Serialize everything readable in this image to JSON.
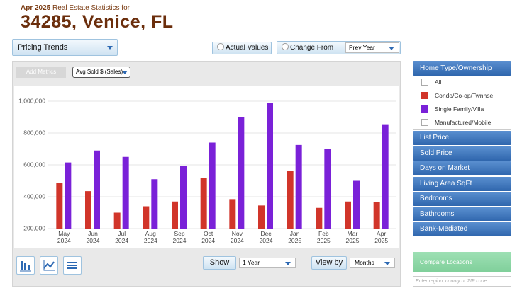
{
  "header": {
    "date": "Apr 2025",
    "subtitle": "Real Estate Statistics for",
    "title": "34285, Venice, FL"
  },
  "controls": {
    "trend": "Pricing Trends",
    "actual_values": "Actual Values",
    "change_from": "Change From",
    "compare_period": "Prev Year",
    "add_metrics": "Add Metrics",
    "metric": "Avg Sold $ (Sales)",
    "show": "Show",
    "period": "1 Year",
    "view_by": "View by",
    "interval": "Months"
  },
  "sidebar": {
    "home_type": "Home Type/Ownership",
    "all": "All",
    "manufactured": "Manufactured/Mobile",
    "sections": [
      "List Price",
      "Sold Price",
      "Days on Market",
      "Living Area SqFt",
      "Bedrooms",
      "Bathrooms",
      "Bank-Mediated"
    ],
    "compare": "Compare Locations",
    "search_placeholder": "Enter region, county or ZIP code"
  },
  "chart_data": {
    "type": "bar",
    "categories": [
      "May 2024",
      "Jun 2024",
      "Jul 2024",
      "Aug 2024",
      "Sep 2024",
      "Oct 2024",
      "Nov 2024",
      "Dec 2024",
      "Jan 2025",
      "Feb 2025",
      "Mar 2025",
      "Apr 2025"
    ],
    "series": [
      {
        "name": "Condo/Co-op/Twnhse",
        "color": "#d1352a",
        "values": [
          485000,
          435000,
          300000,
          340000,
          370000,
          520000,
          385000,
          345000,
          560000,
          330000,
          370000,
          365000
        ]
      },
      {
        "name": "Single Family/Villa",
        "color": "#7a21d8",
        "values": [
          615000,
          690000,
          650000,
          510000,
          595000,
          740000,
          900000,
          990000,
          725000,
          700000,
          500000,
          855000
        ]
      }
    ],
    "ylim": [
      200000,
      1000000
    ],
    "yticks": [
      {
        "value": 200000,
        "label": "200,000"
      },
      {
        "value": 400000,
        "label": "400,000"
      },
      {
        "value": 600000,
        "label": "600,000"
      },
      {
        "value": 800000,
        "label": "800,000"
      },
      {
        "value": 1000000,
        "label": "1,000,000"
      }
    ],
    "grid": true
  }
}
